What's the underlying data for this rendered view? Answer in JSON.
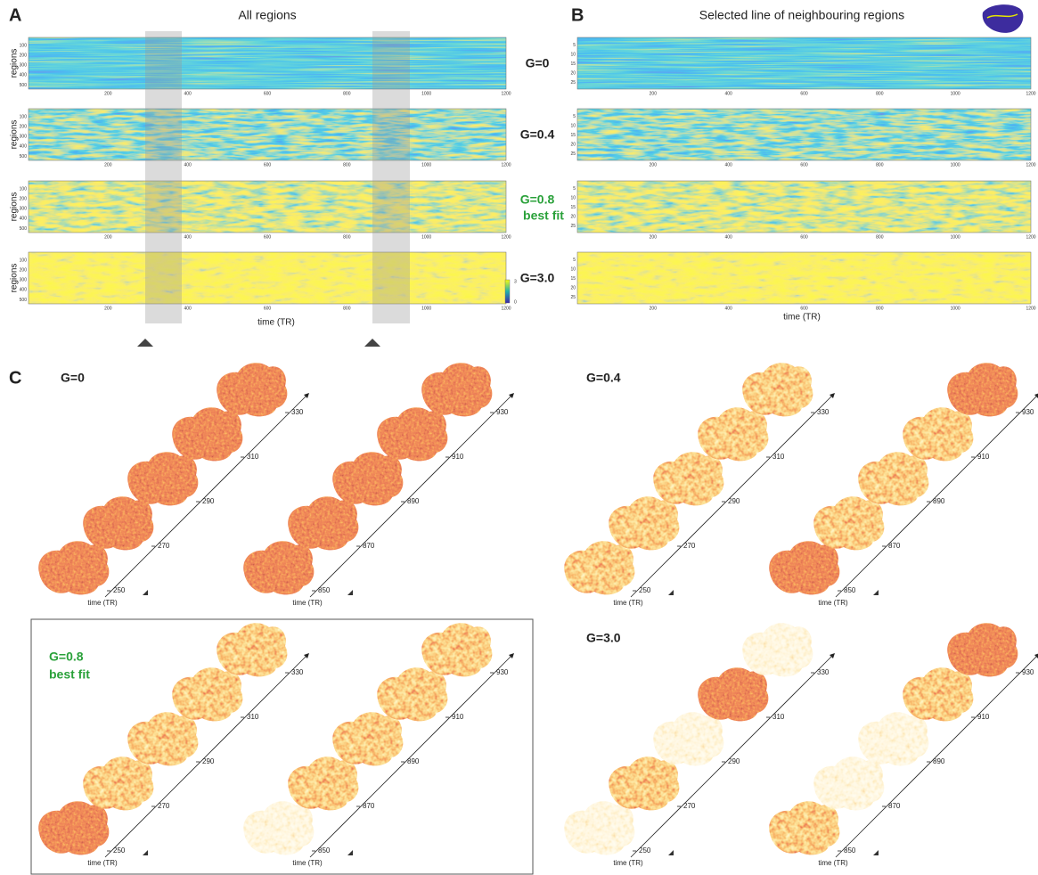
{
  "panel_a": {
    "label": "A",
    "title": "All regions",
    "y_label": "regions",
    "x_label": "time (TR)",
    "x_ticks": [
      "200",
      "400",
      "600",
      "800",
      "1000",
      "1200"
    ],
    "y_ticks": [
      "100",
      "200",
      "300",
      "400",
      "500"
    ],
    "colorbar_ticks": [
      "3",
      "0"
    ],
    "rows": [
      {
        "g": "G=0"
      },
      {
        "g": "G=0.4"
      },
      {
        "g": "G=0.8",
        "note": "best fit"
      },
      {
        "g": "G=3.0"
      }
    ]
  },
  "panel_b": {
    "label": "B",
    "title": "Selected line of neighbouring regions",
    "x_label": "time (TR)",
    "x_ticks": [
      "200",
      "400",
      "600",
      "800",
      "1000",
      "1200"
    ],
    "y_ticks": [
      "5",
      "10",
      "15",
      "20",
      "25"
    ]
  },
  "panel_c": {
    "label": "C",
    "x_label": "time (TR)",
    "subpanels": [
      {
        "g": "G=0"
      },
      {
        "g": "G=0.4"
      },
      {
        "g": "G=0.8",
        "note": "best fit"
      },
      {
        "g": "G=3.0"
      }
    ],
    "stacks": [
      [
        "250",
        "270",
        "290",
        "310",
        "330"
      ],
      [
        "850",
        "870",
        "890",
        "910",
        "930"
      ]
    ]
  }
}
